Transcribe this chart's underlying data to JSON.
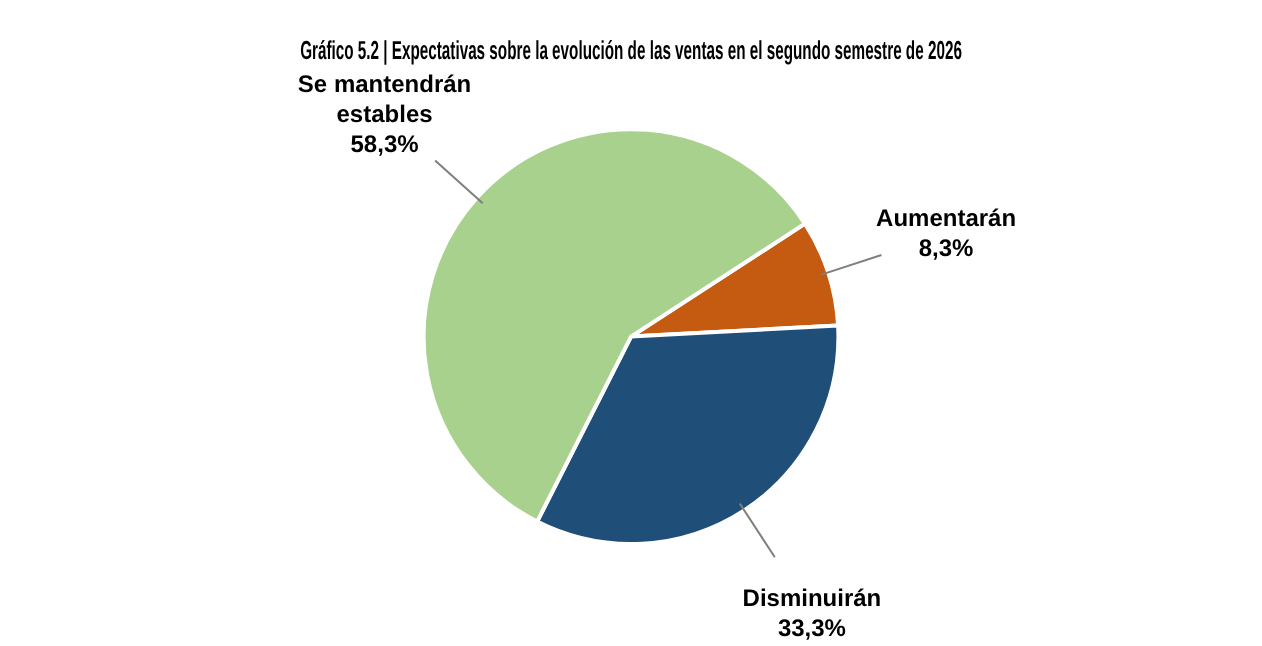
{
  "chart_data": {
    "type": "pie",
    "title": "Gráfico 5.2 | Expectativas sobre la evolución de las ventas en el segundo semestre de 2026",
    "categories": [
      "Aumentarán",
      "Disminuirán",
      "Se mantendrán estables"
    ],
    "values": [
      8.3,
      33.3,
      58.3
    ],
    "colors": [
      "#c55a11",
      "#1f4e79",
      "#a9d18e"
    ],
    "value_labels": [
      "8,3%",
      "33,3%",
      "58,3%"
    ],
    "legend": false
  }
}
